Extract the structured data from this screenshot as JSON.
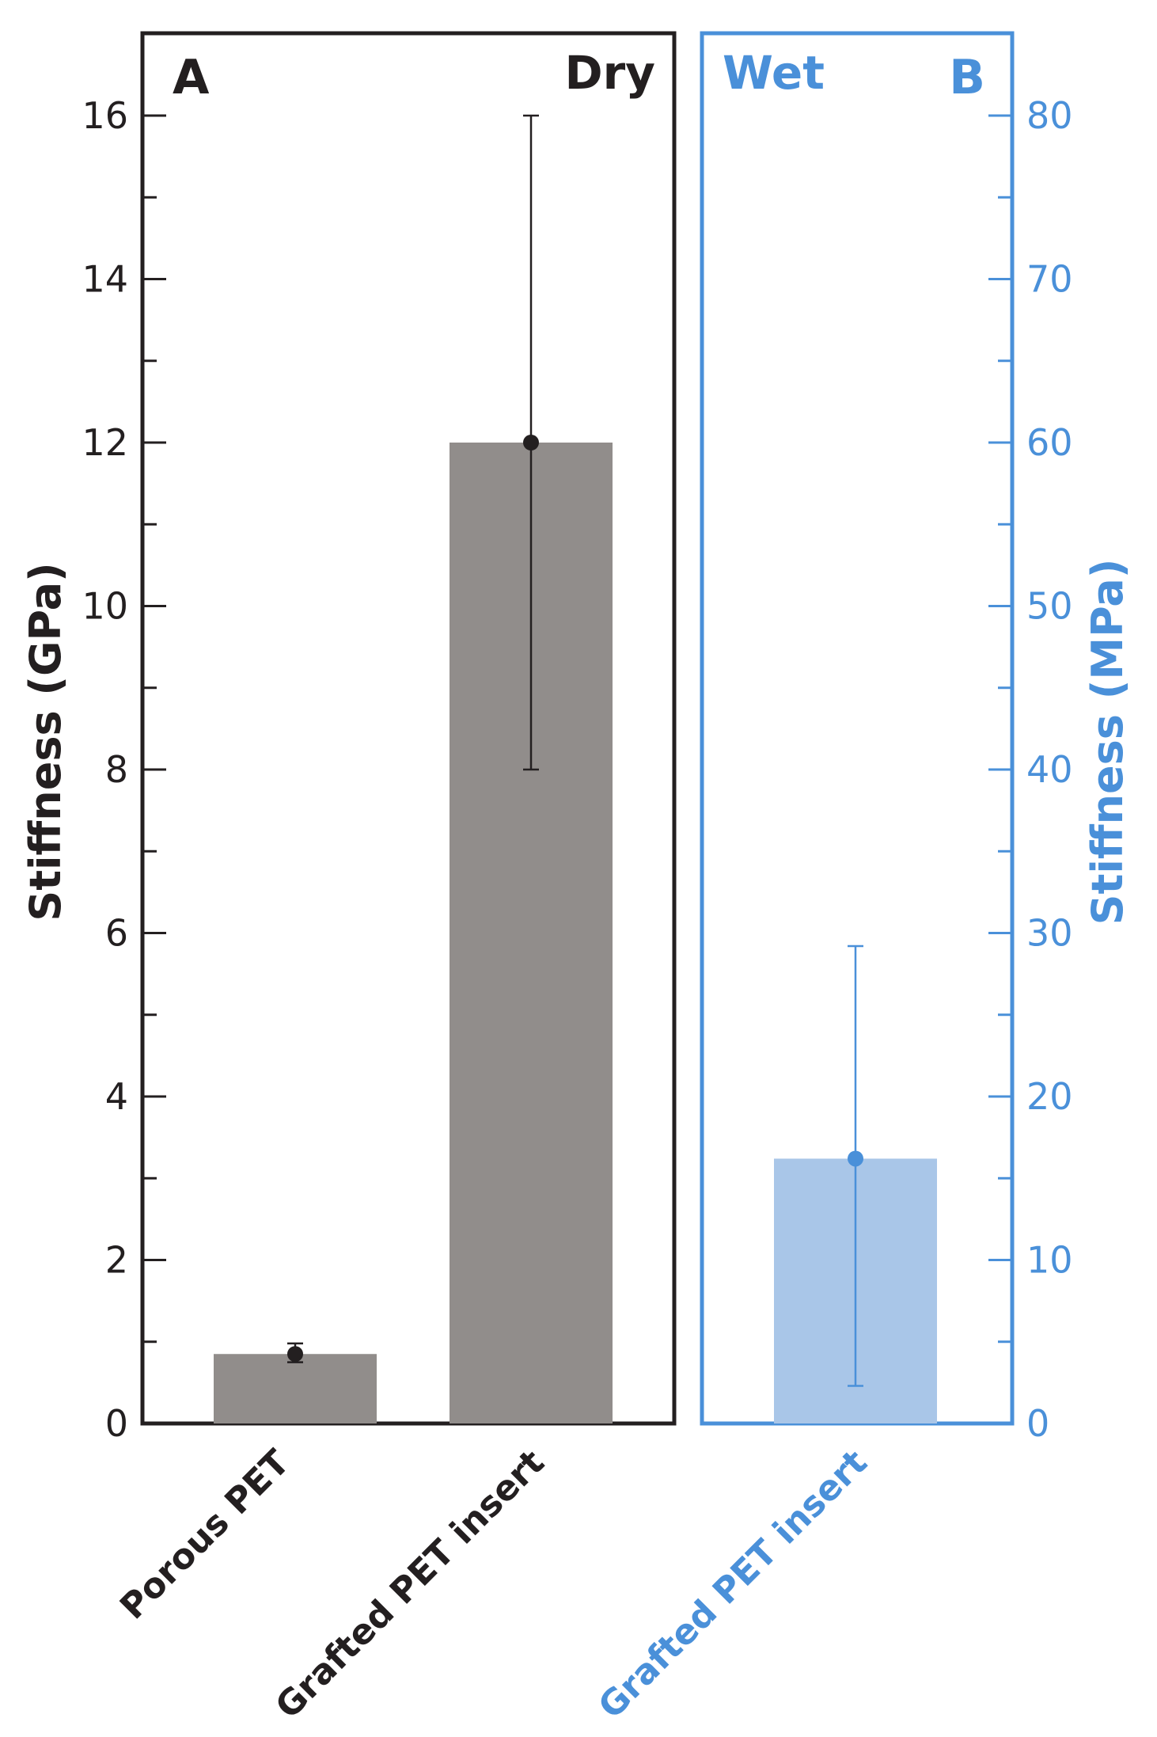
{
  "colors": {
    "dry_bar": "#918d8b",
    "wet_bar": "#a9c6e8",
    "dry_axis": "#231f20",
    "wet_axis": "#4a90d9"
  },
  "chart_data": [
    {
      "type": "bar",
      "panel": "A",
      "condition": "Dry",
      "categories": [
        "Porous PET",
        "Grafted PET insert"
      ],
      "values": [
        0.85,
        12.0
      ],
      "error_low": [
        0.75,
        8.0
      ],
      "error_high": [
        0.98,
        16.0
      ],
      "ylabel": "Stiffness (GPa)",
      "ylim": [
        0,
        16
      ],
      "yticks": [
        "0",
        "2",
        "4",
        "6",
        "8",
        "10",
        "12",
        "14",
        "16"
      ],
      "grid": false
    },
    {
      "type": "bar",
      "panel": "B",
      "condition": "Wet",
      "categories": [
        "Grafted PET insert"
      ],
      "values": [
        16.2
      ],
      "error_low": [
        2.3
      ],
      "error_high": [
        29.2
      ],
      "ylabel": "Stiffness (MPa)",
      "ylim": [
        0,
        80
      ],
      "yticks": [
        "0",
        "10",
        "20",
        "30",
        "40",
        "50",
        "60",
        "70",
        "80"
      ],
      "grid": false
    }
  ]
}
